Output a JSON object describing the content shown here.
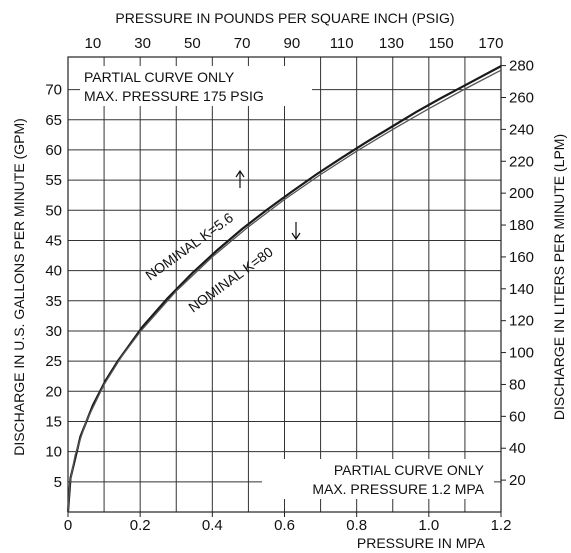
{
  "chart_data": {
    "type": "line",
    "title": "",
    "x_bottom": {
      "label": "PRESSURE IN MPA",
      "min": 0,
      "max": 1.2,
      "ticks": [
        0,
        0.2,
        0.4,
        0.6,
        0.8,
        1.0,
        1.2
      ],
      "tick_labels": [
        "0",
        "0.2",
        "0.4",
        "0.6",
        "0.8",
        "1.0",
        "1.2"
      ],
      "gridlines": [
        0.1,
        0.2,
        0.3,
        0.4,
        0.5,
        0.6,
        0.7,
        0.8,
        0.9,
        1.0,
        1.1
      ]
    },
    "x_top": {
      "label": "PRESSURE IN POUNDS PER SQUARE INCH (PSIG)",
      "min": 0,
      "max": 174.05,
      "ticks": [
        10,
        30,
        50,
        70,
        90,
        110,
        130,
        150,
        170
      ],
      "tick_labels": [
        "10",
        "30",
        "50",
        "70",
        "90",
        "110",
        "130",
        "150",
        "170"
      ]
    },
    "y_left": {
      "label": "DISCHARGE IN U.S. GALLONS PER MINUTE (GPM)",
      "min": 0,
      "max": 75.4,
      "ticks": [
        5,
        10,
        15,
        20,
        25,
        30,
        35,
        40,
        45,
        50,
        55,
        60,
        65,
        70
      ],
      "tick_labels": [
        "5",
        "10",
        "15",
        "20",
        "25",
        "30",
        "35",
        "40",
        "45",
        "50",
        "55",
        "60",
        "65",
        "70"
      ],
      "gridlines": [
        5,
        10,
        15,
        20,
        25,
        30,
        35,
        40,
        45,
        50,
        55,
        60,
        65,
        70
      ]
    },
    "y_right": {
      "label": "DISCHARGE IN LITERS PER MINUTE (LPM)",
      "min": 0,
      "max": 285.4,
      "ticks": [
        20,
        40,
        60,
        80,
        100,
        120,
        140,
        160,
        180,
        200,
        220,
        240,
        260,
        280
      ],
      "tick_labels": [
        "20",
        "40",
        "60",
        "80",
        "100",
        "120",
        "140",
        "160",
        "180",
        "200",
        "220",
        "240",
        "260",
        "280"
      ]
    },
    "grid": true,
    "series": [
      {
        "name": "NOMINAL K=5.6",
        "axes": "psig-gpm",
        "x": [
          0,
          1,
          5,
          10,
          15,
          20,
          30,
          40,
          50,
          60,
          70,
          80,
          90,
          100,
          110,
          120,
          130,
          140,
          150,
          160,
          170,
          174.05
        ],
        "y": [
          0,
          5.6,
          12.5,
          17.7,
          21.7,
          25.0,
          30.7,
          35.4,
          39.6,
          43.4,
          46.9,
          50.1,
          53.1,
          56.0,
          58.7,
          61.3,
          63.8,
          66.3,
          68.6,
          70.8,
          73.0,
          73.9
        ]
      },
      {
        "name": "NOMINAL K=80",
        "axes": "mpa-lpm",
        "x": [
          0,
          0.005,
          0.02,
          0.05,
          0.1,
          0.15,
          0.2,
          0.3,
          0.4,
          0.5,
          0.6,
          0.7,
          0.8,
          0.9,
          1.0,
          1.1,
          1.2
        ],
        "y": [
          0,
          17.9,
          35.8,
          56.6,
          80.0,
          98.0,
          113.1,
          138.6,
          160.0,
          178.9,
          196.0,
          211.7,
          226.3,
          240.0,
          253.0,
          265.3,
          277.1
        ]
      }
    ],
    "annotations": {
      "top_left_line1": "PARTIAL CURVE ONLY",
      "top_left_line2": "MAX. PRESSURE 175 PSIG",
      "bottom_right_line1": "PARTIAL CURVE ONLY",
      "bottom_right_line2": "MAX. PRESSURE 1.2 MPA",
      "curve_label_upper": "NOMINAL K=5.6",
      "curve_label_lower": "NOMINAL K=80"
    }
  }
}
